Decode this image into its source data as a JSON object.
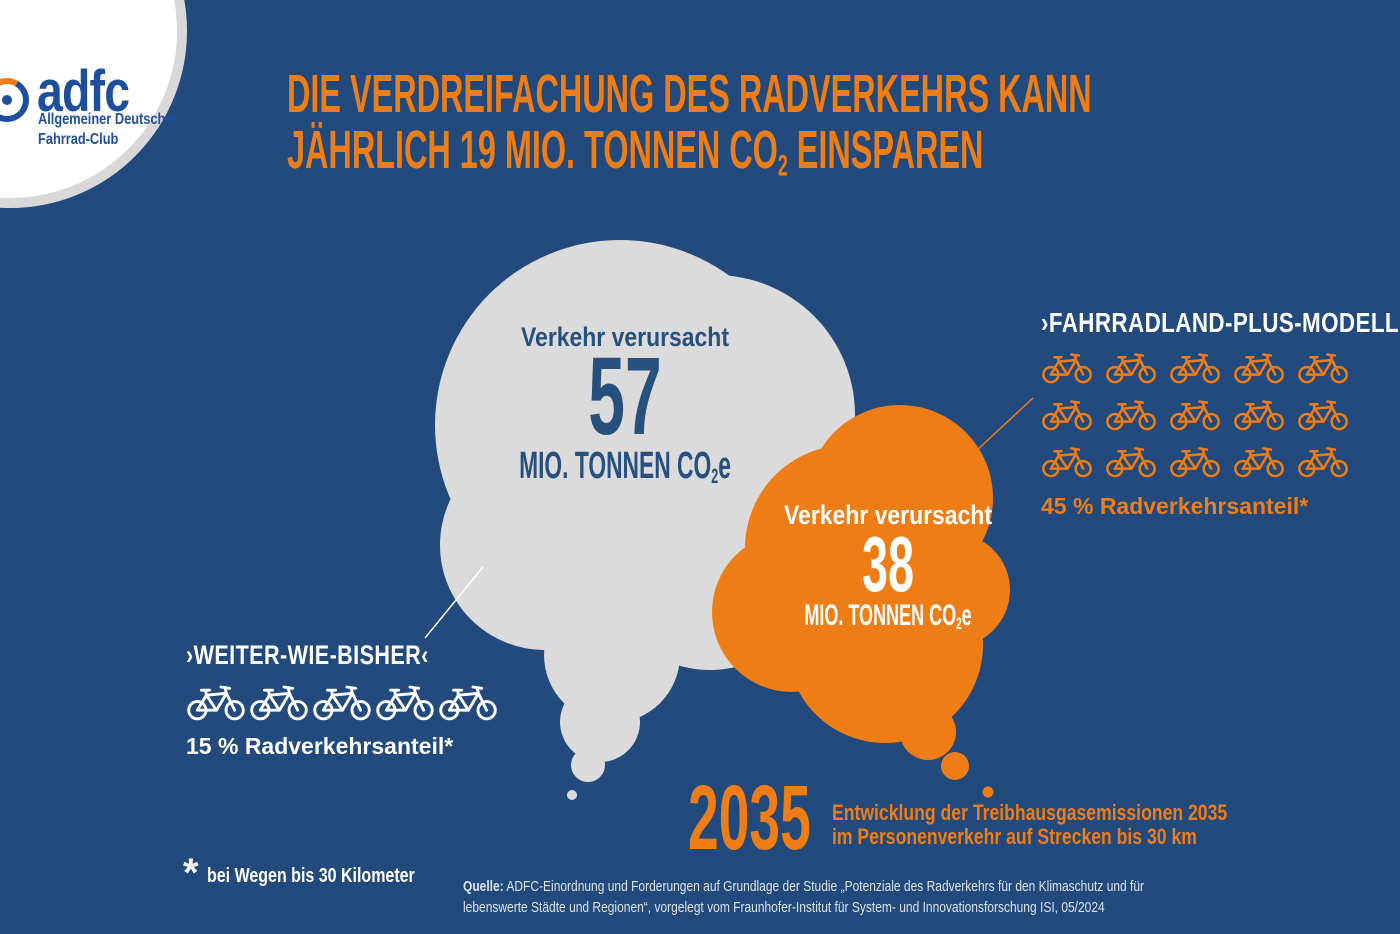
{
  "colors": {
    "background": "#224a7c",
    "orange": "#ee7d16",
    "cloud_gray": "#dbdbdb",
    "cloud_text_blue": "#27507f",
    "logo_blue": "#1e4f9e",
    "source_text": "#dbe3f0",
    "white": "#ffffff",
    "ring_gray": "#d8d8d8"
  },
  "logo": {
    "wordmark": "adfc",
    "subline1": "Allgemeiner Deutscher",
    "subline2": "Fahrrad-Club"
  },
  "headline": {
    "line1": "DIE VERDREIFACHUNG DES RADVERKEHRS KANN",
    "line2_pre": "JÄHRLICH 19 MIO. TONNEN CO",
    "line2_sub": "2",
    "line2_post": " EINSPAREN"
  },
  "scenarios": {
    "baseline": {
      "label": "›WEITER-WIE-BISHER‹",
      "bubble_intro": "Verkehr verursacht",
      "value": "57",
      "unit_pre": "MIO. TONNEN CO",
      "unit_sub": "2",
      "unit_post": "e",
      "share": "15 % Radverkehrsanteil*",
      "bikes": 5
    },
    "plus_model": {
      "label": "›FAHRRADLAND-PLUS-MODELL‹",
      "bubble_intro": "Verkehr verursacht",
      "value": "38",
      "unit_pre": "MIO. TONNEN CO",
      "unit_sub": "2",
      "unit_post": "e",
      "share": "45 % Radverkehrsanteil*",
      "bikes": 15,
      "bikes_per_row": 5
    }
  },
  "year_caption": {
    "year": "2035",
    "line1": "Entwicklung der Treibhausgasemissionen 2035",
    "line2": "im Personenverkehr auf Strecken bis 30 km"
  },
  "footnote": {
    "asterisk": "*",
    "text": "bei Wegen bis 30 Kilometer"
  },
  "source": {
    "label": "Quelle:",
    "line1": " ADFC-Einordnung und Forderungen auf Grundlage der Studie „Potenziale des Radverkehrs für den Klimaschutz und für",
    "line2": "lebenswerte Städte und Regionen“, vorgelegt vom Fraunhofer-Institut für System- und Innovationsforschung ISI, 05/2024"
  },
  "chart_data": {
    "type": "pictogram-bubble",
    "title": "Die Verdreifachung des Radverkehrs kann jährlich 19 Mio. Tonnen CO2 einsparen",
    "year": 2035,
    "co2_savings_mio_tonnen": 19,
    "scenarios": [
      {
        "name": "Weiter-wie-bisher",
        "co2e_mio_tonnen": 57,
        "radverkehrsanteil_percent": 15,
        "bike_icons": 5,
        "bubble_color": "#dbdbdb"
      },
      {
        "name": "Fahrradland-Plus-Modell",
        "co2e_mio_tonnen": 38,
        "radverkehrsanteil_percent": 45,
        "bike_icons": 15,
        "bubble_color": "#ee7d16"
      }
    ],
    "note": "bei Wegen bis 30 Kilometer",
    "caption": "Entwicklung der Treibhausgasemissionen 2035 im Personenverkehr auf Strecken bis 30 km",
    "source": "ADFC-Einordnung und Forderungen auf Grundlage der Studie „Potenziale des Radverkehrs für den Klimaschutz und für lebenswerte Städte und Regionen“, vorgelegt vom Fraunhofer-Institut für System- und Innovationsforschung ISI, 05/2024"
  }
}
